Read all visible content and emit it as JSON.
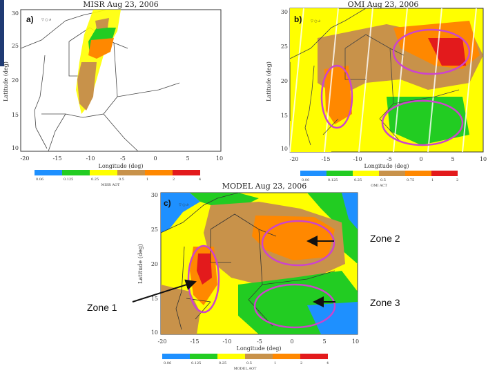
{
  "panels": {
    "a": {
      "title": "MISR  Aug 23, 2006",
      "label": "a)",
      "xlabel": "Longitude (deg)",
      "ylabel": "Latitude (deg)",
      "xticks": [
        "-20",
        "-15",
        "-10",
        "-5",
        "0",
        "5",
        "10"
      ],
      "yticks": [
        "30",
        "25",
        "20",
        "15",
        "10"
      ],
      "colorbar_ticks": [
        "0.06",
        "0.125",
        "0.25",
        "0.5",
        "1",
        "2",
        "4"
      ],
      "colorbar_title": "MISR AOT"
    },
    "b": {
      "title": "OMI  Aug 23, 2006",
      "label": "b)",
      "xlabel": "Longitude (deg)",
      "ylabel": "Latitude (deg)",
      "xticks": [
        "-20",
        "-15",
        "-10",
        "-5",
        "0",
        "5",
        "10"
      ],
      "yticks": [
        "30",
        "25",
        "20",
        "15",
        "10"
      ],
      "colorbar_ticks": [
        "0.00",
        "0.125",
        "0.25",
        "0.5",
        "0.75",
        "1",
        "2"
      ],
      "colorbar_title": "OMI ACT"
    },
    "c": {
      "title": "MODEL  Aug 23, 2006",
      "label": "c)",
      "xlabel": "Longitude (deg)",
      "ylabel": "Latitude (deg)",
      "xticks": [
        "-20",
        "-15",
        "-10",
        "-5",
        "0",
        "5",
        "10"
      ],
      "yticks": [
        "30",
        "25",
        "20",
        "15",
        "10"
      ],
      "colorbar_ticks": [
        "0.06",
        "0.125",
        "0.25",
        "0.5",
        "1",
        "2",
        "4"
      ],
      "colorbar_title": "MODEL AOT"
    }
  },
  "annotations": {
    "zone1": "Zone 1",
    "zone2": "Zone 2",
    "zone3": "Zone 3"
  },
  "colors": {
    "scale": [
      "#1e90ff",
      "#22cc22",
      "#ffff00",
      "#c8924a",
      "#ff8800",
      "#e31a1c"
    ],
    "ellipse": "#cc44cc",
    "accent_bar": "#1f3a73"
  }
}
